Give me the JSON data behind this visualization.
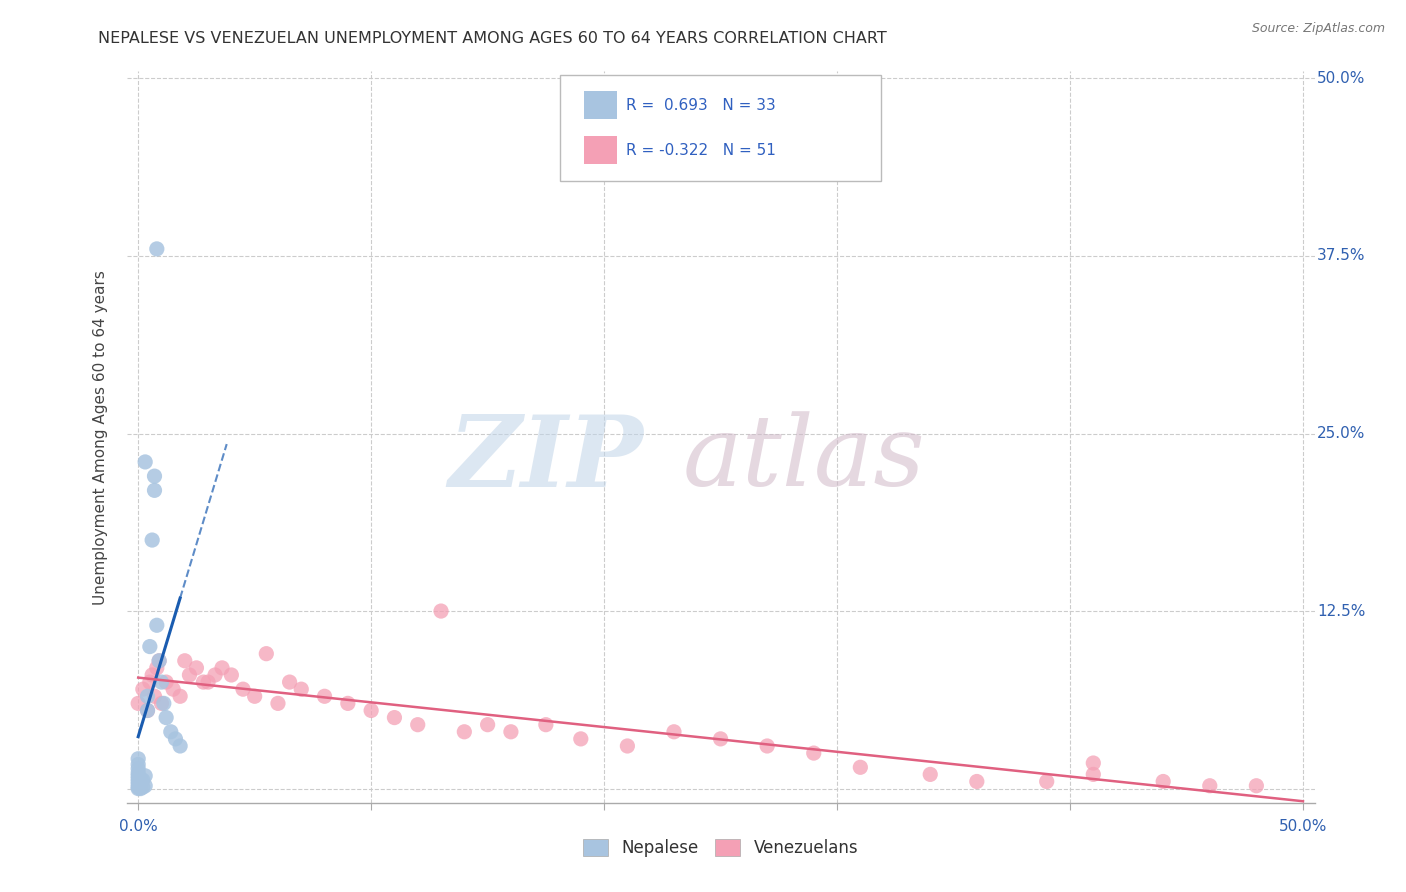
{
  "title": "NEPALESE VS VENEZUELAN UNEMPLOYMENT AMONG AGES 60 TO 64 YEARS CORRELATION CHART",
  "source": "Source: ZipAtlas.com",
  "ylabel": "Unemployment Among Ages 60 to 64 years",
  "xlim": [
    -0.005,
    0.505
  ],
  "ylim": [
    -0.01,
    0.505
  ],
  "nepalese_R": 0.693,
  "nepalese_N": 33,
  "venezuelan_R": -0.322,
  "venezuelan_N": 51,
  "nepalese_color": "#a8c4e0",
  "venezuelan_color": "#f4a0b5",
  "nepalese_line_color": "#1a5cb0",
  "venezuelan_line_color": "#e06080",
  "background_color": "#ffffff",
  "grid_color": "#cccccc",
  "nepalese_x": [
    0.0,
    0.0,
    0.0,
    0.0,
    0.0,
    0.0,
    0.0,
    0.0,
    0.0,
    0.0,
    0.001,
    0.001,
    0.001,
    0.002,
    0.002,
    0.003,
    0.003,
    0.004,
    0.004,
    0.005,
    0.006,
    0.007,
    0.008,
    0.009,
    0.01,
    0.011,
    0.012,
    0.014,
    0.016,
    0.018,
    0.003,
    0.007,
    0.008
  ],
  "nepalese_y": [
    0.0,
    0.001,
    0.003,
    0.005,
    0.007,
    0.009,
    0.011,
    0.014,
    0.017,
    0.021,
    0.0,
    0.004,
    0.007,
    0.001,
    0.006,
    0.002,
    0.009,
    0.055,
    0.065,
    0.1,
    0.175,
    0.21,
    0.115,
    0.09,
    0.075,
    0.06,
    0.05,
    0.04,
    0.035,
    0.03,
    0.23,
    0.22,
    0.38
  ],
  "venezuelan_x": [
    0.0,
    0.002,
    0.004,
    0.005,
    0.006,
    0.007,
    0.008,
    0.009,
    0.01,
    0.012,
    0.015,
    0.018,
    0.02,
    0.022,
    0.025,
    0.028,
    0.03,
    0.033,
    0.036,
    0.04,
    0.045,
    0.05,
    0.055,
    0.06,
    0.065,
    0.07,
    0.08,
    0.09,
    0.1,
    0.11,
    0.12,
    0.13,
    0.14,
    0.15,
    0.16,
    0.175,
    0.19,
    0.21,
    0.23,
    0.25,
    0.27,
    0.29,
    0.31,
    0.34,
    0.36,
    0.39,
    0.41,
    0.44,
    0.46,
    0.48,
    0.41
  ],
  "venezuelan_y": [
    0.06,
    0.07,
    0.055,
    0.075,
    0.08,
    0.065,
    0.085,
    0.09,
    0.06,
    0.075,
    0.07,
    0.065,
    0.09,
    0.08,
    0.085,
    0.075,
    0.075,
    0.08,
    0.085,
    0.08,
    0.07,
    0.065,
    0.095,
    0.06,
    0.075,
    0.07,
    0.065,
    0.06,
    0.055,
    0.05,
    0.045,
    0.125,
    0.04,
    0.045,
    0.04,
    0.045,
    0.035,
    0.03,
    0.04,
    0.035,
    0.03,
    0.025,
    0.015,
    0.01,
    0.005,
    0.005,
    0.01,
    0.005,
    0.002,
    0.002,
    0.018
  ]
}
